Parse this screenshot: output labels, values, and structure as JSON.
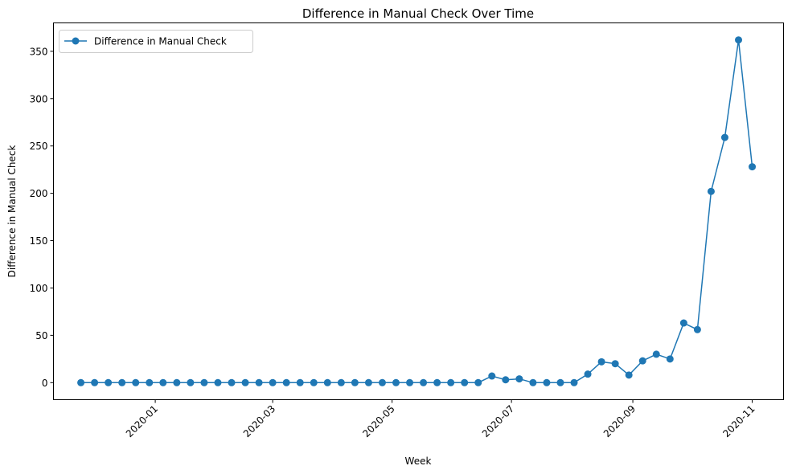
{
  "chart_data": {
    "type": "line",
    "title": "Difference in Manual Check Over Time",
    "xlabel": "Week",
    "ylabel": "Difference in Manual Check",
    "x_tick_labels": [
      "2020-01",
      "2020-03",
      "2020-05",
      "2020-07",
      "2020-09",
      "2020-11"
    ],
    "y_tick_labels": [
      "0",
      "50",
      "100",
      "150",
      "200",
      "250",
      "300",
      "350"
    ],
    "x_tick_dates": [
      "2020-01-01",
      "2020-03-01",
      "2020-05-01",
      "2020-07-01",
      "2020-09-01",
      "2020-11-01"
    ],
    "y_ticks": [
      0,
      50,
      100,
      150,
      200,
      250,
      300,
      350
    ],
    "xlim": [
      "2019-11-10",
      "2020-11-17"
    ],
    "ylim": [
      -18,
      380
    ],
    "grid": false,
    "legend_position": "upper-left",
    "series": [
      {
        "name": "Difference in Manual Check",
        "color": "#1f77b4",
        "marker": "circle",
        "x": [
          "2019-11-24",
          "2019-12-01",
          "2019-12-08",
          "2019-12-15",
          "2019-12-22",
          "2019-12-29",
          "2020-01-05",
          "2020-01-12",
          "2020-01-19",
          "2020-01-26",
          "2020-02-02",
          "2020-02-09",
          "2020-02-16",
          "2020-02-23",
          "2020-03-01",
          "2020-03-08",
          "2020-03-15",
          "2020-03-22",
          "2020-03-29",
          "2020-04-05",
          "2020-04-12",
          "2020-04-19",
          "2020-04-26",
          "2020-05-03",
          "2020-05-10",
          "2020-05-17",
          "2020-05-24",
          "2020-05-31",
          "2020-06-07",
          "2020-06-14",
          "2020-06-21",
          "2020-06-28",
          "2020-07-05",
          "2020-07-12",
          "2020-07-19",
          "2020-07-26",
          "2020-08-02",
          "2020-08-09",
          "2020-08-16",
          "2020-08-23",
          "2020-08-30",
          "2020-09-06",
          "2020-09-13",
          "2020-09-20",
          "2020-09-27",
          "2020-10-04",
          "2020-10-11",
          "2020-10-18",
          "2020-10-25",
          "2020-11-01"
        ],
        "y": [
          0,
          0,
          0,
          0,
          0,
          0,
          0,
          0,
          0,
          0,
          0,
          0,
          0,
          0,
          0,
          0,
          0,
          0,
          0,
          0,
          0,
          0,
          0,
          0,
          0,
          0,
          0,
          0,
          0,
          0,
          7,
          3,
          4,
          0,
          0,
          0,
          0,
          9,
          22,
          20,
          8,
          23,
          30,
          25,
          63,
          56,
          202,
          259,
          362,
          228
        ]
      }
    ]
  }
}
